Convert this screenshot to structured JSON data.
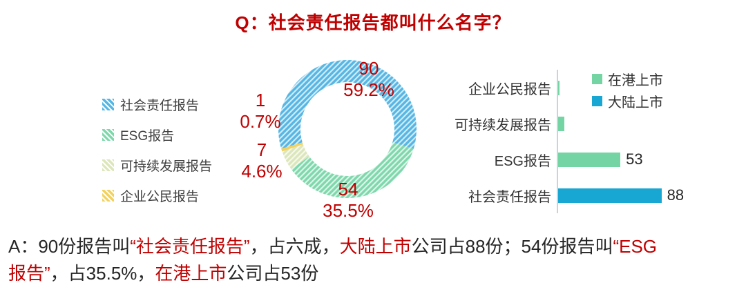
{
  "title": "Q：社会责任报告都叫什么名字？",
  "colors": {
    "highlight_red": "#c00000",
    "text_dark": "#262626",
    "legend_text": "#404040",
    "axis_gray": "#ccd2d8",
    "donut_blue": "#56b6e4",
    "donut_green": "#7ed8ac",
    "donut_light_green": "#dce6ba",
    "donut_yellow": "#f2d25e",
    "bar_green": "#74d4a4",
    "bar_blue": "#18a6d2"
  },
  "chart_data": [
    {
      "type": "pie",
      "donut": true,
      "pattern": "diagonal-stripes",
      "legend_position": "left",
      "labels": [
        "社会责任报告",
        "ESG报告",
        "可持续发展报告",
        "企业公民报告"
      ],
      "values": [
        90,
        54,
        7,
        1
      ],
      "percent_labels": [
        "59.2%",
        "35.5%",
        "4.6%",
        "0.7%"
      ],
      "color_keys": [
        "donut_blue",
        "donut_green",
        "donut_light_green",
        "donut_yellow"
      ]
    },
    {
      "type": "bar",
      "orientation": "horizontal",
      "legend_position": "top-right",
      "categories": [
        "企业公民报告",
        "可持续发展报告",
        "ESG报告",
        "社会责任报告"
      ],
      "series": [
        {
          "name": "在港上市",
          "color_key": "bar_green",
          "values": [
            1,
            5,
            53,
            0
          ]
        },
        {
          "name": "大陆上市",
          "color_key": "bar_blue",
          "values": [
            0,
            0,
            0,
            88
          ]
        }
      ],
      "data_labels": [
        "",
        "",
        "53",
        "88"
      ],
      "xlim": [
        0,
        100
      ]
    }
  ],
  "answer": {
    "lines": [
      [
        {
          "text": "A：90份报告叫",
          "highlight": false
        },
        {
          "text": "“社会责任报告”",
          "highlight": true
        },
        {
          "text": "，占六成，",
          "highlight": false
        },
        {
          "text": "大陆上市",
          "highlight": true
        },
        {
          "text": "公司占88份；54份报告叫",
          "highlight": false
        },
        {
          "text": "“ESG",
          "highlight": true
        }
      ],
      [
        {
          "text": "报告”",
          "highlight": true
        },
        {
          "text": "，占35.5%，",
          "highlight": false
        },
        {
          "text": "在港上市",
          "highlight": true
        },
        {
          "text": "公司占53份",
          "highlight": false
        }
      ]
    ]
  }
}
